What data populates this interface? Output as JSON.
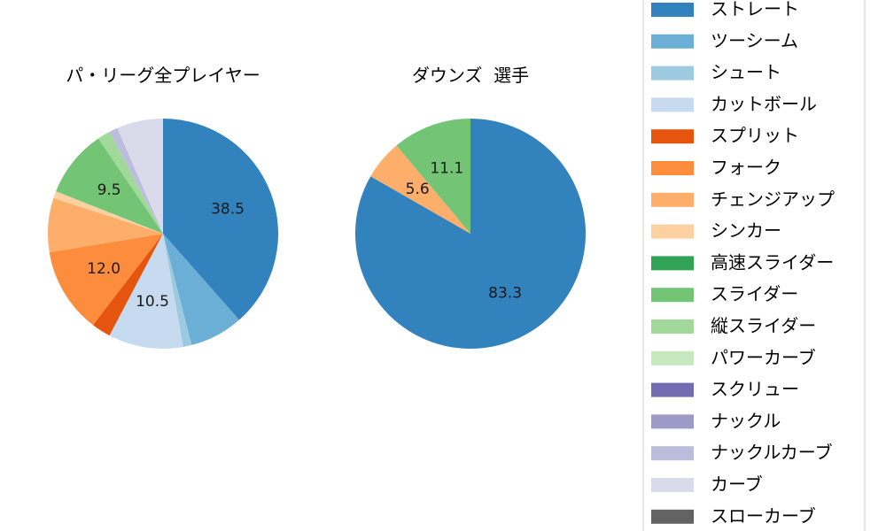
{
  "chart_data": [
    {
      "type": "pie",
      "title": "パ・リーグ全プレイヤー",
      "start_angle": 90,
      "direction": "clockwise",
      "categories": [
        "ストレート",
        "ツーシーム",
        "シュート",
        "カットボール",
        "スプリット",
        "フォーク",
        "チェンジアップ",
        "シンカー",
        "高速スライダー",
        "スライダー",
        "縦スライダー",
        "パワーカーブ",
        "スクリュー",
        "ナックル",
        "ナックルカーブ",
        "カーブ",
        "スローカーブ"
      ],
      "values": [
        38.5,
        7.5,
        1.2,
        10.5,
        2.7,
        12.0,
        7.6,
        1.0,
        0.0,
        9.5,
        1.8,
        0.0,
        0.0,
        0.0,
        1.2,
        6.5,
        0.0
      ],
      "data_labels": [
        "38.5",
        "",
        "",
        "10.5",
        "",
        "12.0",
        "",
        "",
        "",
        "9.5",
        "",
        "",
        "",
        "",
        "",
        "",
        ""
      ]
    },
    {
      "type": "pie",
      "title": "ダウンズ  選手",
      "start_angle": 90,
      "direction": "clockwise",
      "categories": [
        "ストレート",
        "ツーシーム",
        "シュート",
        "カットボール",
        "スプリット",
        "フォーク",
        "チェンジアップ",
        "シンカー",
        "高速スライダー",
        "スライダー",
        "縦スライダー",
        "パワーカーブ",
        "スクリュー",
        "ナックル",
        "ナックルカーブ",
        "カーブ",
        "スローカーブ"
      ],
      "values": [
        83.3,
        0,
        0,
        0,
        0,
        0,
        5.6,
        0,
        0,
        11.1,
        0,
        0,
        0,
        0,
        0,
        0,
        0
      ],
      "data_labels": [
        "83.3",
        "",
        "",
        "",
        "",
        "",
        "5.6",
        "",
        "",
        "11.1",
        "",
        "",
        "",
        "",
        "",
        "",
        ""
      ]
    }
  ],
  "legend": {
    "placement": "right",
    "items": [
      {
        "label": "ストレート",
        "color": "#3182bd"
      },
      {
        "label": "ツーシーム",
        "color": "#6baed6"
      },
      {
        "label": "シュート",
        "color": "#9ecae1"
      },
      {
        "label": "カットボール",
        "color": "#c6dbef"
      },
      {
        "label": "スプリット",
        "color": "#e6550d"
      },
      {
        "label": "フォーク",
        "color": "#fd8d3c"
      },
      {
        "label": "チェンジアップ",
        "color": "#fdae6b"
      },
      {
        "label": "シンカー",
        "color": "#fdd0a2"
      },
      {
        "label": "高速スライダー",
        "color": "#31a354"
      },
      {
        "label": "スライダー",
        "color": "#74c476"
      },
      {
        "label": "縦スライダー",
        "color": "#a1d99b"
      },
      {
        "label": "パワーカーブ",
        "color": "#c7e9c0"
      },
      {
        "label": "スクリュー",
        "color": "#756bb1"
      },
      {
        "label": "ナックル",
        "color": "#9e9ac8"
      },
      {
        "label": "ナックルカーブ",
        "color": "#bcbddc"
      },
      {
        "label": "カーブ",
        "color": "#dadaeb"
      },
      {
        "label": "スローカーブ",
        "color": "#636363"
      }
    ]
  }
}
